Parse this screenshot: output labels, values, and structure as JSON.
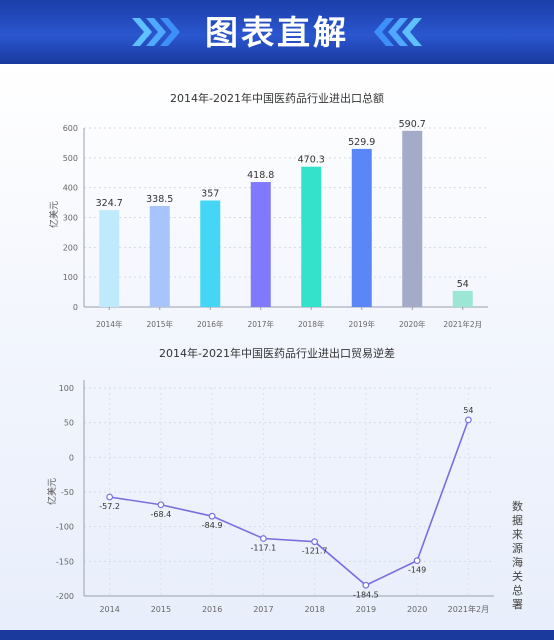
{
  "header": {
    "title": "图表直解"
  },
  "source_note": "数据来源海关总署",
  "colors": {
    "header_bg": "#2a56cf",
    "line": "#7b6ee0",
    "bars": [
      "#bfeafb",
      "#a9c3fb",
      "#45d6f5",
      "#8179fb",
      "#34e2cb",
      "#5a86f7",
      "#a3abc8",
      "#9ce6d6"
    ]
  },
  "chart_data": [
    {
      "type": "bar",
      "title": "2014年-2021年中国医药品行业进出口总额",
      "ylabel": "亿美元",
      "categories": [
        "2014年",
        "2015年",
        "2016年",
        "2017年",
        "2018年",
        "2019年",
        "2020年",
        "2021年2月"
      ],
      "values": [
        324.7,
        338.5,
        357,
        418.8,
        470.3,
        529.9,
        590.7,
        54
      ],
      "value_labels": [
        "324.7",
        "338.5",
        "357",
        "418.8",
        "470.3",
        "529.9",
        "590.7",
        "54"
      ],
      "ylim": [
        0,
        600
      ],
      "yticks": [
        "0",
        "100",
        "200",
        "300",
        "400",
        "500",
        "600"
      ],
      "grid": true
    },
    {
      "type": "line",
      "title": "2014年-2021年中国医药品行业进出口贸易逆差",
      "ylabel": "亿美元",
      "categories": [
        "2014",
        "2015",
        "2016",
        "2017",
        "2018",
        "2019",
        "2020",
        "2021年2月"
      ],
      "values": [
        -57.2,
        -68.4,
        -84.9,
        -117.1,
        -121.7,
        -184.5,
        -149,
        54
      ],
      "value_labels": [
        "-57.2",
        "-68.4",
        "-84.9",
        "-117.1",
        "-121.7",
        "-184.5",
        "-149",
        "54"
      ],
      "ylim": [
        -200,
        100
      ],
      "yticks": [
        "100",
        "50",
        "0",
        "-50",
        "-100",
        "-150",
        "-200"
      ],
      "grid": true
    }
  ]
}
